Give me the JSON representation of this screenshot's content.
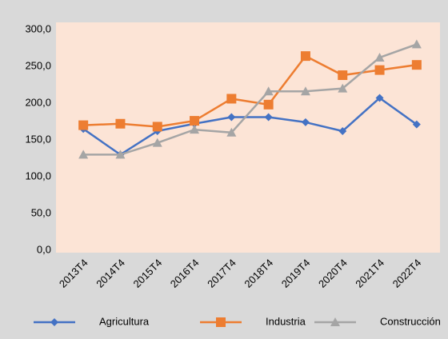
{
  "chart_data": {
    "type": "line",
    "categories": [
      "2013T4",
      "2014T4",
      "2015T4",
      "2016T4",
      "2017T4",
      "2018T4",
      "2019T4",
      "2020T4",
      "2021T4",
      "2022T4"
    ],
    "series": [
      {
        "name": "Agricultura",
        "color": "#4472c4",
        "marker": "diamond",
        "values": [
          165,
          130,
          162,
          172,
          181,
          181,
          174,
          162,
          207,
          171
        ]
      },
      {
        "name": "Industria",
        "color": "#ed7d31",
        "marker": "square",
        "values": [
          170,
          172,
          168,
          176,
          206,
          198,
          264,
          238,
          245,
          252
        ]
      },
      {
        "name": "Construcción",
        "color": "#a5a5a5",
        "marker": "triangle",
        "values": [
          130,
          130,
          146,
          164,
          160,
          216,
          216,
          220,
          262,
          280
        ]
      }
    ],
    "ylim": [
      0,
      300
    ],
    "yticks": [
      {
        "value": 0,
        "label": "0,0"
      },
      {
        "value": 50,
        "label": "50,0"
      },
      {
        "value": 100,
        "label": "100,0"
      },
      {
        "value": 150,
        "label": "150,0"
      },
      {
        "value": 200,
        "label": "200,0"
      },
      {
        "value": 250,
        "label": "250,0"
      },
      {
        "value": 300,
        "label": "300,0"
      }
    ],
    "grid": false,
    "legend": "bottom"
  }
}
